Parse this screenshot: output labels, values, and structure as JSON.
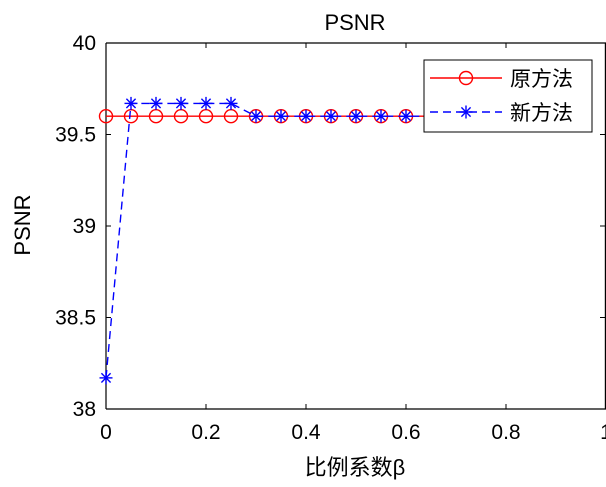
{
  "chart_data": {
    "type": "line",
    "title": "PSNR",
    "xlabel": "比例系数β",
    "ylabel": "PSNR",
    "xlim": [
      0,
      1
    ],
    "ylim": [
      38,
      40
    ],
    "x_ticks": [
      0,
      0.2,
      0.4,
      0.6,
      0.8,
      1
    ],
    "x_tick_labels": [
      "0",
      "0.2",
      "0.4",
      "0.6",
      "0.8",
      "1"
    ],
    "y_ticks": [
      38,
      38.5,
      39,
      39.5,
      40
    ],
    "y_tick_labels": [
      "38",
      "38.5",
      "39",
      "39.5",
      "40"
    ],
    "grid": false,
    "legend_position": "top-right",
    "series": [
      {
        "name": "原方法",
        "color": "#ff0000",
        "line_style": "solid",
        "marker": "circle",
        "x": [
          0,
          0.05,
          0.1,
          0.15,
          0.2,
          0.25,
          0.3,
          0.35,
          0.4,
          0.45,
          0.5,
          0.55,
          0.6,
          0.65,
          0.7,
          0.75,
          0.8,
          0.85,
          0.9,
          0.95
        ],
        "y": [
          39.6,
          39.6,
          39.6,
          39.6,
          39.6,
          39.6,
          39.6,
          39.6,
          39.6,
          39.6,
          39.6,
          39.6,
          39.6,
          39.6,
          39.6,
          39.6,
          39.6,
          39.6,
          39.6,
          39.6
        ]
      },
      {
        "name": "新方法",
        "color": "#0000ff",
        "line_style": "dashed",
        "marker": "asterisk",
        "x": [
          0,
          0.05,
          0.1,
          0.15,
          0.2,
          0.25,
          0.3,
          0.35,
          0.4,
          0.45,
          0.5,
          0.55,
          0.6,
          0.65,
          0.7,
          0.75,
          0.8,
          0.85,
          0.9,
          0.95
        ],
        "y": [
          38.17,
          39.67,
          39.67,
          39.67,
          39.67,
          39.67,
          39.6,
          39.6,
          39.6,
          39.6,
          39.6,
          39.6,
          39.6,
          39.6,
          39.6,
          39.6,
          39.6,
          39.6,
          39.6,
          39.6
        ]
      }
    ]
  }
}
